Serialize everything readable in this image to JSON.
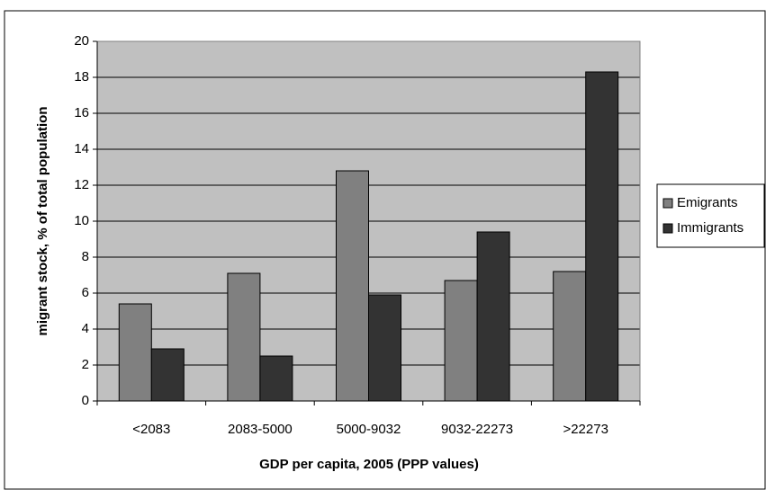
{
  "chart_data": {
    "type": "bar",
    "x_label": "GDP per capita, 2005 (PPP values)",
    "y_label": "migrant stock, % of total population",
    "categories": [
      "<2083",
      "2083-5000",
      "5000-9032",
      "9032-22273",
      ">22273"
    ],
    "series": [
      {
        "name": "Emigrants",
        "color": "#808080",
        "values": [
          5.4,
          7.1,
          12.8,
          6.7,
          7.2
        ]
      },
      {
        "name": "Immigrants",
        "color": "#333333",
        "values": [
          2.9,
          2.5,
          5.9,
          9.4,
          18.3
        ]
      }
    ],
    "ylim": [
      0,
      20
    ],
    "yticks": [
      0,
      2,
      4,
      6,
      8,
      10,
      12,
      14,
      16,
      18,
      20
    ],
    "grid": true,
    "plot_background": "#c0c0c0",
    "legend": "right"
  }
}
